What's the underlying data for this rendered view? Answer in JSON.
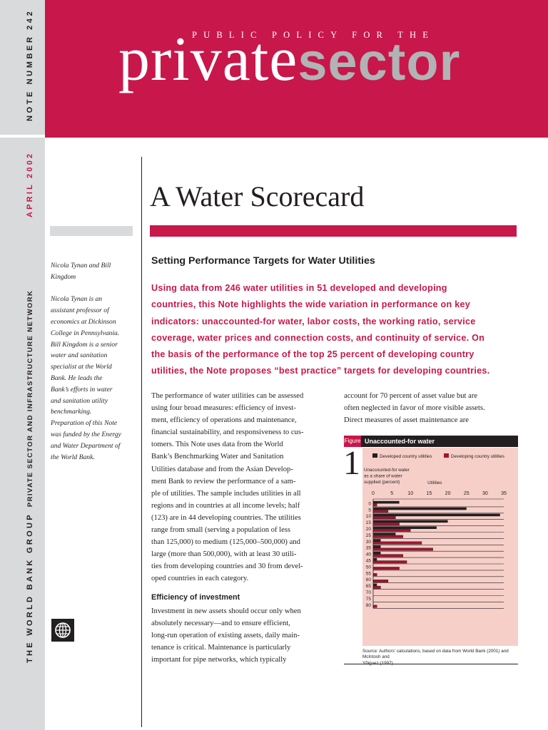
{
  "sidebar": {
    "note_number": "NOTE NUMBER 242",
    "issue_date": "APRIL 2002",
    "publisher": "THE WORLD BANK GROUP",
    "network": "PRIVATE SECTOR AND INFRASTRUCTURE NETWORK"
  },
  "masthead": {
    "series_line": "PUBLIC POLICY FOR THE",
    "brand_private": "private",
    "brand_sector": "sector"
  },
  "title": "A Water Scorecard",
  "subtitle": "Setting Performance Targets for Water Utilities",
  "abstract_lines": [
    "Using data from 246 water utilities in 51 developed and developing",
    "countries, this Note highlights the wide variation in performance on key",
    "indicators: unaccounted-for water, labor costs, the working ratio, service",
    "coverage, water prices and connection costs, and continuity of service. On",
    "the basis of the performance of the top 25 percent of developing country",
    "utilities, the Note proposes “best practice” targets for developing countries."
  ],
  "authors": {
    "names_lines": [
      "Nicola Tynan and Bill",
      "Kingdom"
    ],
    "bio_lines": [
      "Nicola Tynan is an",
      "assistant professor of",
      "economics at Dickinson",
      "College in Pennsylvania.",
      "Bill Kingdom is a senior",
      "water and sanitation",
      "specialist at the World",
      "Bank. He leads the",
      "Bank’s efforts in water",
      "and sanitation utility",
      "benchmarking.",
      "Preparation of this Note",
      "was funded by the Energy",
      "and Water Department of",
      "the World Bank."
    ]
  },
  "body": {
    "col1_lines": [
      "The performance of water utilities can be assessed",
      "using four broad measures: efficiency of invest-",
      "ment, efficiency of operations and maintenance,",
      "financial sustainability, and responsiveness to cus-",
      "tomers. This Note uses data from the World",
      "Bank’s Benchmarking Water and Sanitation",
      "Utilities database and from the Asian Develop-",
      "ment Bank to review the performance of a sam-",
      "ple of utilities. The sample includes utilities in all",
      "regions and in countries at all income levels; half",
      "(123) are in 44 developing countries. The utilities",
      "range from small (serving a population of less",
      "than 125,000) to medium (125,000–500,000) and",
      "large (more than 500,000), with at least 30 utili-",
      "ties from developing countries and 30 from devel-",
      "oped countries in each category."
    ],
    "invest_heading": "Efficiency of investment",
    "col1b_lines": [
      "Investment in new assets should occur only when",
      "absolutely necessary—and to ensure efficient,",
      "long-run operation of existing assets, daily main-",
      "tenance is critical. Maintenance is particularly",
      "important for pipe networks, which typically"
    ],
    "col2_lines": [
      "account for 70 percent of asset value but are",
      "often neglected in favor of more visible assets.",
      "Direct measures of asset maintenance are"
    ]
  },
  "figure": {
    "tag": "Figure",
    "number": "1",
    "title": "Unaccounted-for water",
    "source_lines": [
      "Source: Authors’ calculations, based on data from World Bank (2001) and McIntosh and",
      "Yñiguez (1997)."
    ]
  },
  "colors": {
    "brand_red": "#c8174b",
    "panel_pink": "#f6cfc9",
    "developed_bar": "#231f20",
    "developing_bar": "#a0152f",
    "sidebar_grey": "#d9dadb"
  },
  "chart_data": {
    "type": "bar",
    "orientation": "horizontal",
    "y_axis_title_lines": [
      "Unaccounted-for water",
      "as a share of water",
      "supplied (percent)"
    ],
    "x_axis_title": "Utilities",
    "x_ticks": [
      0,
      5,
      10,
      15,
      20,
      25,
      30,
      35
    ],
    "xlim": [
      0,
      35
    ],
    "categories": [
      "0",
      "5",
      "10",
      "15",
      "20",
      "25",
      "30",
      "35",
      "40",
      "45",
      "50",
      "55",
      "60",
      "65",
      "70",
      "75",
      "80"
    ],
    "series": [
      {
        "name": "Developed country utilities",
        "color": "#231f20",
        "values": [
          7,
          25,
          34,
          20,
          17,
          6,
          2,
          2,
          2,
          1,
          0,
          0,
          0,
          1,
          0,
          0,
          0
        ]
      },
      {
        "name": "Developing country utilities",
        "color": "#a0152f",
        "values": [
          1,
          4,
          6,
          7,
          10,
          8,
          13,
          16,
          8,
          9,
          7,
          1,
          4,
          2,
          0,
          0,
          1
        ]
      }
    ],
    "grid": false,
    "legend_position": "top"
  }
}
